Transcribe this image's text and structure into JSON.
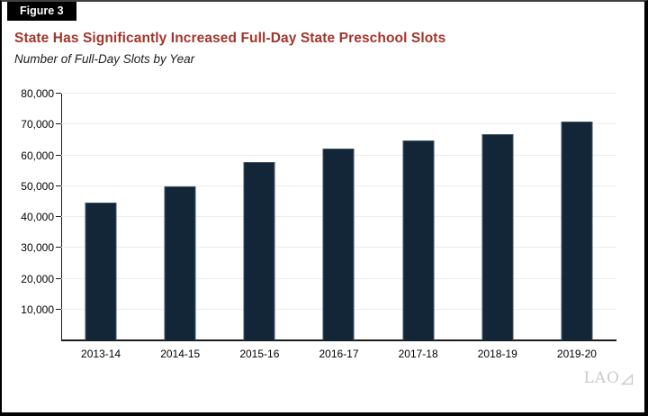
{
  "figure_label": "Figure 3",
  "title": "State Has Significantly Increased Full-Day State Preschool Slots",
  "subtitle": "Number of Full-Day Slots by Year",
  "logo_text": "LAO",
  "colors": {
    "title": "#A3352B",
    "bar": "#122638",
    "bar_border": "#3D5166",
    "grid": "#ECECEC",
    "axis": "#1A1A1A",
    "logo": "#C9CBCE",
    "figure_tab_bg": "#000000",
    "figure_tab_text": "#FFFFFF",
    "border_top": "#414141",
    "border_dark": "#000000"
  },
  "chart_data": {
    "type": "bar",
    "categories": [
      "2013-14",
      "2014-15",
      "2015-16",
      "2016-17",
      "2017-18",
      "2018-19",
      "2019-20"
    ],
    "values": [
      44800,
      50000,
      57700,
      62100,
      64900,
      66900,
      71000
    ],
    "title": "State Has Significantly Increased Full-Day State Preschool Slots",
    "subtitle": "Number of Full-Day Slots by Year",
    "xlabel": "",
    "ylabel": "",
    "ylim": [
      0,
      80000
    ],
    "ytick_interval": 10000,
    "ytick_labels": [
      "10,000",
      "20,000",
      "30,000",
      "40,000",
      "50,000",
      "60,000",
      "70,000",
      "80,000"
    ],
    "grid": true,
    "legend": false,
    "bar_color": "#122638"
  }
}
